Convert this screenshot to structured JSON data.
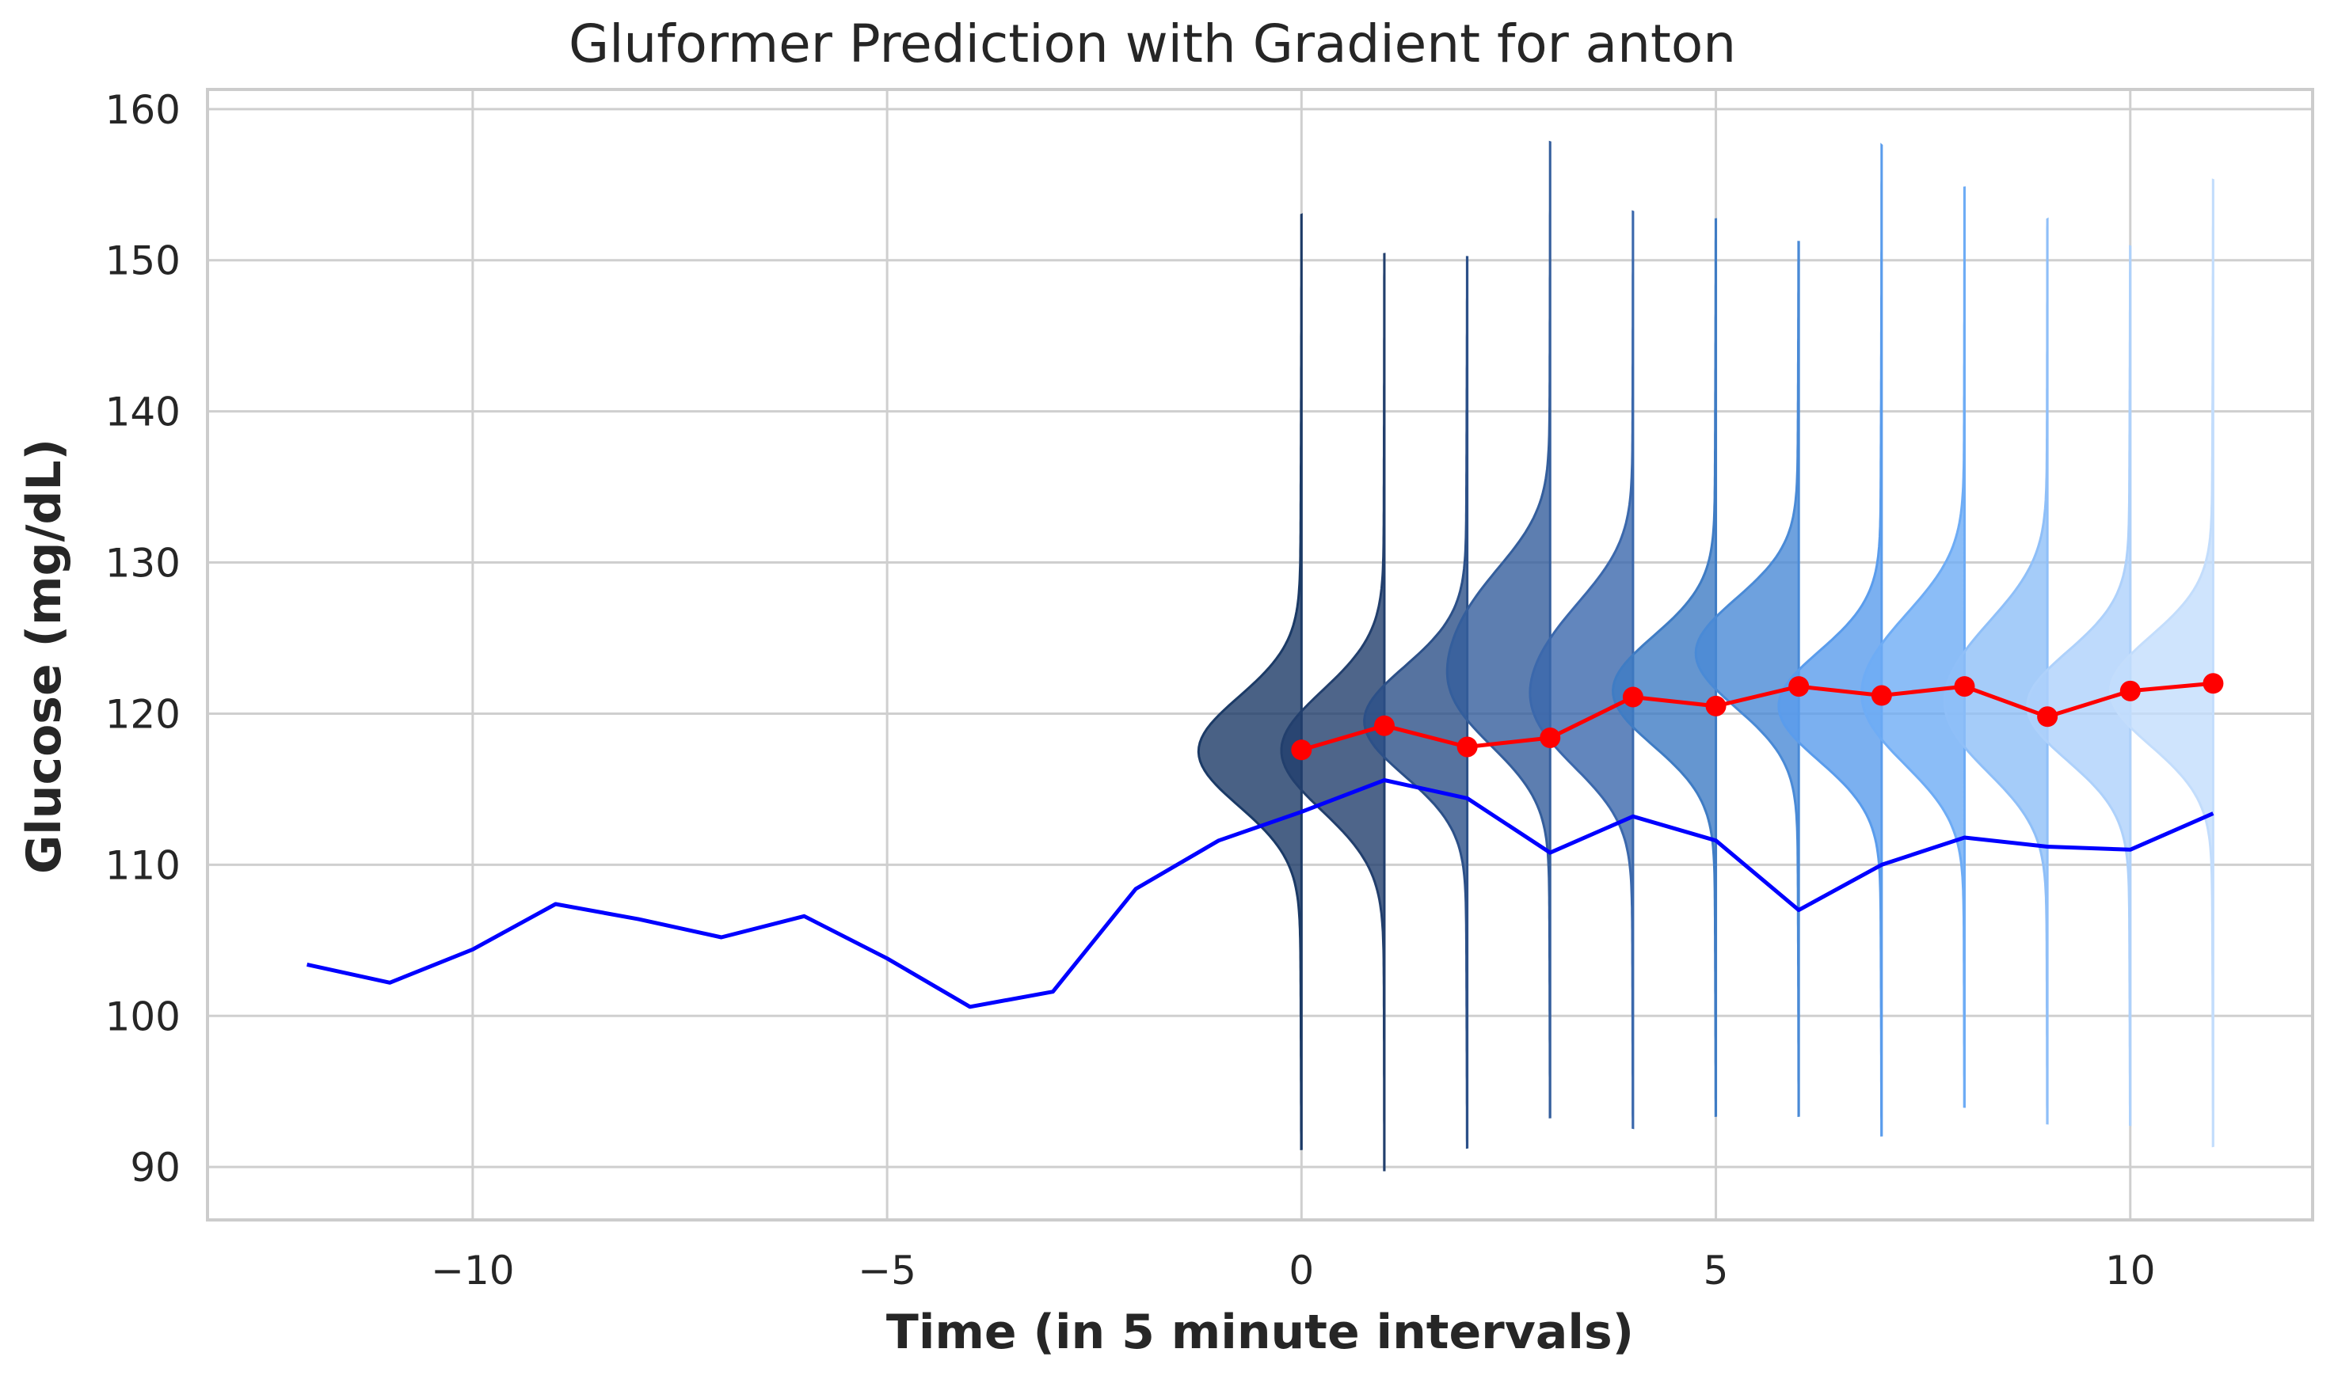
{
  "chart_data": {
    "type": "line",
    "title": "Gluformer Prediction with Gradient for anton",
    "xlabel": "Time (in 5 minute intervals)",
    "ylabel": "Glucose (mg/dL)",
    "xlim": [
      -13.2,
      12.2
    ],
    "ylim": [
      86.5,
      161.3
    ],
    "xticks": [
      -10,
      -5,
      0,
      5,
      10
    ],
    "xtick_labels": [
      "−10",
      "−5",
      "0",
      "5",
      "10"
    ],
    "yticks": [
      90,
      100,
      110,
      120,
      130,
      140,
      150,
      160
    ],
    "ytick_labels": [
      "90",
      "100",
      "110",
      "120",
      "130",
      "140",
      "150",
      "160"
    ],
    "grid": true,
    "series": [
      {
        "role": "actual",
        "color": "#0000ff",
        "x": [
          -12,
          -11,
          -10,
          -9,
          -8,
          -7,
          -6,
          -5,
          -4,
          -3,
          -2,
          -1,
          0,
          1,
          2,
          3,
          4,
          5,
          6,
          7,
          8,
          9,
          10,
          11
        ],
        "values": [
          103.4,
          102.2,
          104.4,
          107.4,
          106.4,
          105.2,
          106.6,
          103.8,
          100.6,
          101.6,
          108.4,
          111.6,
          113.5,
          115.6,
          114.4,
          110.8,
          113.2,
          111.6,
          107.0,
          110.0,
          111.8,
          111.2,
          111.0,
          113.4
        ]
      },
      {
        "role": "predicted",
        "color": "#ff0000",
        "x": [
          0,
          1,
          2,
          3,
          4,
          5,
          6,
          7,
          8,
          9,
          10,
          11
        ],
        "values": [
          117.6,
          119.2,
          117.8,
          118.4,
          121.1,
          120.5,
          121.8,
          121.2,
          121.8,
          119.8,
          121.5,
          122.0
        ]
      }
    ],
    "distributions": {
      "x": [
        0,
        1,
        2,
        3,
        4,
        5,
        6,
        7,
        8,
        9,
        10,
        11
      ],
      "colors": [
        "#1b3a66",
        "#223f6d",
        "#2c5088",
        "#345e9c",
        "#3b68ac",
        "#3f7cc4",
        "#4a8ad6",
        "#5a9cec",
        "#6eacf5",
        "#8fbff8",
        "#aed1fb",
        "#c3ddfc"
      ],
      "ranges": [
        [
          91.2,
          153.0
        ],
        [
          89.8,
          150.4
        ],
        [
          91.3,
          150.2
        ],
        [
          93.3,
          157.8
        ],
        [
          92.6,
          153.2
        ],
        [
          93.4,
          152.7
        ],
        [
          93.4,
          151.2
        ],
        [
          92.1,
          157.6
        ],
        [
          94.0,
          154.8
        ],
        [
          92.9,
          152.7
        ],
        [
          92.8,
          150.9
        ],
        [
          91.4,
          155.3
        ]
      ],
      "modes": [
        [
          117.5
        ],
        [
          118.8,
          115.8
        ],
        [
          119.5
        ],
        [
          121.0,
          127.0
        ],
        [
          119.5,
          125.0
        ],
        [
          121.5
        ],
        [
          124.0
        ],
        [
          120.5
        ],
        [
          119.5,
          124.5
        ],
        [
          119.0,
          124.0
        ],
        [
          120.5
        ],
        [
          121.5
        ]
      ]
    }
  }
}
